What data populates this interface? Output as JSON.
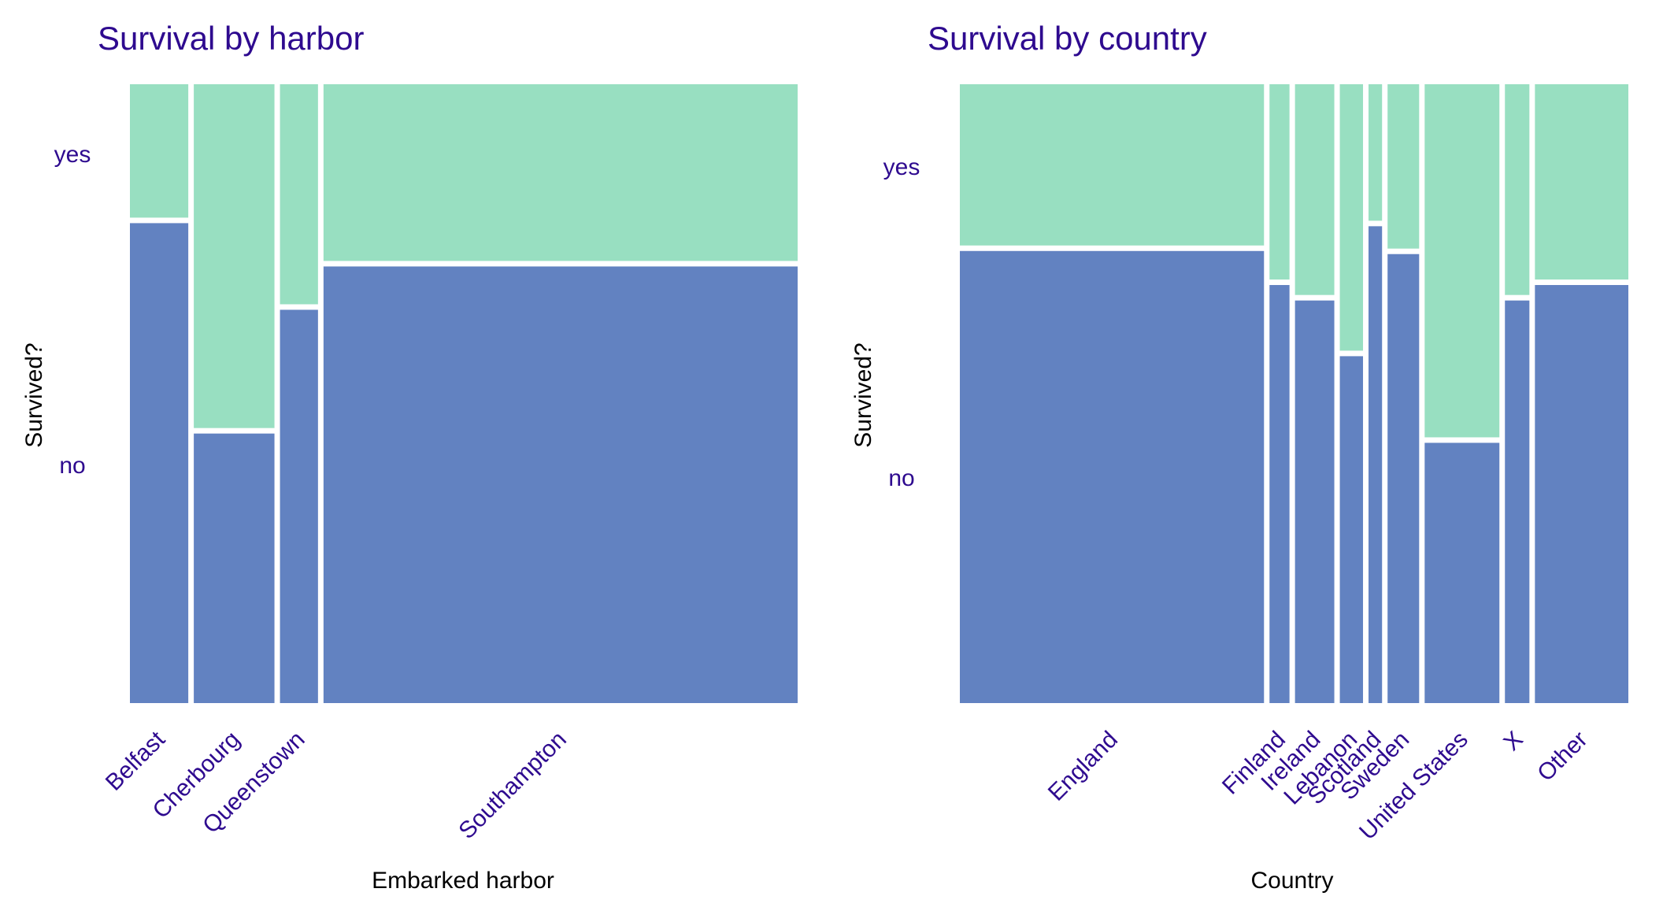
{
  "colors": {
    "no": "#6282C1",
    "yes": "#98DFC1",
    "label_text": "#2E0A8F",
    "axis_title_text": "#000000",
    "separator": "#FFFFFF"
  },
  "chart_data": [
    {
      "type": "mosaic",
      "title": "Survival by harbor",
      "xlabel": "Embarked harbor",
      "ylabel": "Survived?",
      "y_levels": [
        "no",
        "yes"
      ],
      "categories": [
        "Belfast",
        "Cherbourg",
        "Queenstown",
        "Southampton"
      ],
      "column_share": [
        0.089,
        0.123,
        0.058,
        0.723
      ],
      "yes_share": [
        0.22,
        0.56,
        0.36,
        0.29
      ],
      "ylim": [
        0,
        1
      ],
      "grid": false,
      "legend": "none"
    },
    {
      "type": "mosaic",
      "title": "Survival by country",
      "xlabel": "Country",
      "ylabel": "Survived?",
      "y_levels": [
        "no",
        "yes"
      ],
      "categories": [
        "England",
        "Finland",
        "Ireland",
        "Lebanon",
        "Scotland",
        "Sweden",
        "United States",
        "X",
        "Other"
      ],
      "column_share": [
        0.472,
        0.031,
        0.061,
        0.036,
        0.021,
        0.049,
        0.116,
        0.038,
        0.145
      ],
      "yes_share": [
        0.265,
        0.32,
        0.345,
        0.435,
        0.225,
        0.27,
        0.575,
        0.345,
        0.32
      ],
      "ylim": [
        0,
        1
      ],
      "grid": false,
      "legend": "none"
    }
  ]
}
